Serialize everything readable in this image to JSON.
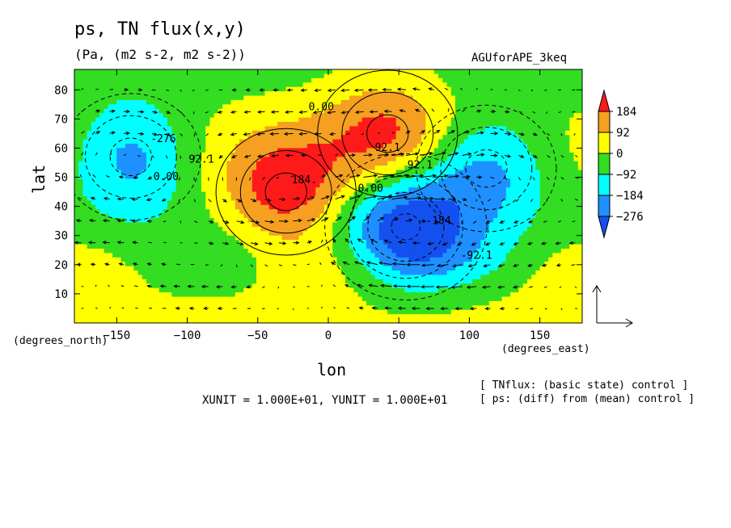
{
  "title": "ps, TN flux(x,y)",
  "subtitle": "(Pa, (m2 s-2, m2 s-2))",
  "run_id": "AGUforAPE_3keq",
  "notes": [
    "[ TNflux: (basic state) control ]",
    "[ ps: (diff) from (mean) control ]"
  ],
  "scale_note": "XUNIT = 1.000E+01, YUNIT = 1.000E+01",
  "chart_data": {
    "type": "heatmap",
    "xlabel": "lon",
    "ylabel": "lat",
    "x_unit_label": "(degrees_east)",
    "y_unit_label": "(degrees_north)",
    "xlim": [
      -180,
      180
    ],
    "ylim": [
      0,
      87
    ],
    "x_ticks": [
      -150,
      -100,
      -50,
      0,
      50,
      100,
      150
    ],
    "y_ticks": [
      10,
      20,
      30,
      40,
      50,
      60,
      70,
      80
    ],
    "colorbar": {
      "labels": [
        "184",
        "92",
        "0",
        "-92",
        "-184",
        "-276"
      ],
      "colors": [
        "#ff1a1a",
        "#f5a020",
        "#ffff00",
        "#33dd22",
        "#00ffff",
        "#1e90ff",
        "#1450f0"
      ]
    },
    "centers": [
      {
        "kind": "high",
        "lon": -30,
        "lat": 45,
        "value": 240
      },
      {
        "kind": "high",
        "lon": 42,
        "lat": 65,
        "value": 200
      },
      {
        "kind": "low",
        "lon": 55,
        "lat": 33,
        "value": -330
      },
      {
        "kind": "low",
        "lon": -140,
        "lat": 57,
        "value": -230
      },
      {
        "kind": "low",
        "lon": 112,
        "lat": 53,
        "value": -220
      }
    ],
    "contour_labels": [
      {
        "text": "0.00",
        "lon": -5,
        "lat": 73
      },
      {
        "text": "92.1",
        "lon": 42,
        "lat": 59
      },
      {
        "text": "92.1",
        "lon": -90,
        "lat": 55
      },
      {
        "text": "184.",
        "lon": -17,
        "lat": 48
      },
      {
        "text": "0.00",
        "lon": -115,
        "lat": 49
      },
      {
        "text": "0.00",
        "lon": 30,
        "lat": 45
      },
      {
        "text": "92.1",
        "lon": 65,
        "lat": 53
      },
      {
        "text": "-184",
        "lon": 78,
        "lat": 34
      },
      {
        "text": "-92.1",
        "lon": 105,
        "lat": 22
      },
      {
        "text": "-276",
        "lon": -117,
        "lat": 62
      }
    ],
    "vectors": {
      "unit": "10",
      "x_unit": 10,
      "y_unit": 10
    }
  }
}
